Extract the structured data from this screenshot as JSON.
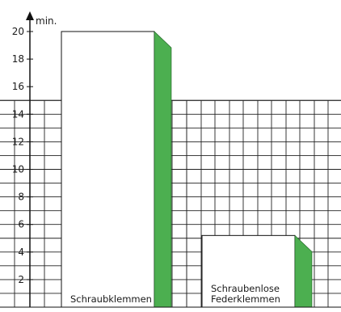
{
  "chart_data": {
    "type": "bar",
    "title": "",
    "xlabel": "",
    "ylabel": "min.",
    "ylim": [
      0,
      21
    ],
    "yticks": [
      2,
      4,
      6,
      8,
      10,
      12,
      14,
      16,
      18,
      20
    ],
    "categories": [
      "Schraubklemmen",
      "Schraubenlose Federklemmen"
    ],
    "values": [
      20,
      5.2
    ],
    "grid": true,
    "legend": "none",
    "colors": {
      "bar_fill": "#ffffff",
      "bar_side": "#4caf50",
      "grid": "#222222",
      "axis": "#111111"
    }
  }
}
